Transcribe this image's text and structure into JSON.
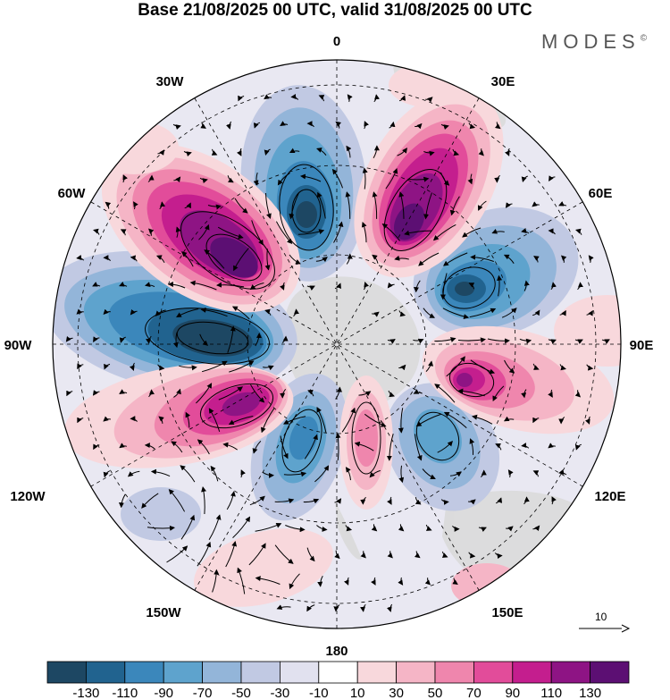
{
  "title": "Base 21/08/2025 00 UTC, valid 31/08/2025 00 UTC",
  "brand": "MODES",
  "brand_mark": "©",
  "longitude_labels": {
    "lon_0": "0",
    "lon_30e": "30E",
    "lon_60e": "60E",
    "lon_90e": "90E",
    "lon_120e": "120E",
    "lon_150e": "150E",
    "lon_180": "180",
    "lon_150w": "150W",
    "lon_120w": "120W",
    "lon_90w": "90W",
    "lon_60w": "60W",
    "lon_30w": "30W"
  },
  "reference_vector": {
    "value": "10"
  },
  "colorbar": {
    "labels": [
      "-130",
      "-110",
      "-90",
      "-70",
      "-50",
      "-30",
      "-10",
      "10",
      "30",
      "50",
      "70",
      "90",
      "110",
      "130"
    ],
    "colors": [
      "#1d4763",
      "#21638f",
      "#3b87bb",
      "#5ea3cd",
      "#93b5d9",
      "#c1c9e3",
      "#e1e1ef",
      "#ffffff",
      "#f8d8dc",
      "#f5b5c6",
      "#ef86ad",
      "#e24c9a",
      "#c41e8e",
      "#8e1484",
      "#5c0f73"
    ]
  },
  "colors": {
    "land": "#d9d9d9",
    "contour": "#000000",
    "grid": "#000000"
  }
}
